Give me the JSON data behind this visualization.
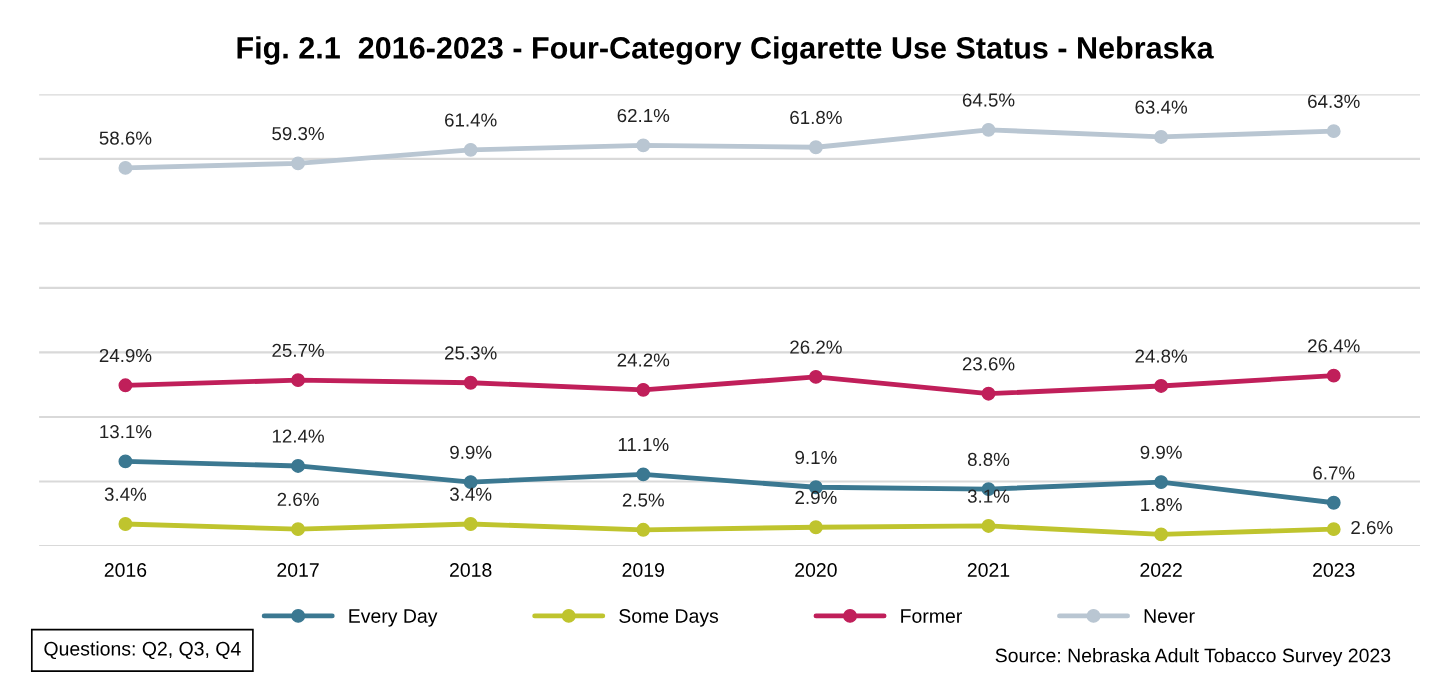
{
  "chart_data": {
    "type": "line",
    "title": "Fig. 2.1  2016-2023 - Four-Category Cigarette Use Status - Nebraska",
    "categories": [
      "2016",
      "2017",
      "2018",
      "2019",
      "2020",
      "2021",
      "2022",
      "2023"
    ],
    "series": [
      {
        "name": "Every Day",
        "color": "#3b7891",
        "values": [
          13.1,
          12.4,
          9.9,
          11.1,
          9.1,
          8.8,
          9.9,
          6.7
        ],
        "value_labels": [
          "13.1%",
          "12.4%",
          "9.9%",
          "11.1%",
          "9.1%",
          "8.8%",
          "9.9%",
          "6.7%"
        ]
      },
      {
        "name": "Some Days",
        "color": "#bfc42e",
        "values": [
          3.4,
          2.6,
          3.4,
          2.5,
          2.9,
          3.1,
          1.8,
          2.6
        ],
        "value_labels": [
          "3.4%",
          "2.6%",
          "3.4%",
          "2.5%",
          "2.9%",
          "3.1%",
          "1.8%",
          "2.6%"
        ]
      },
      {
        "name": "Former",
        "color": "#c01f5a",
        "values": [
          24.9,
          25.7,
          25.3,
          24.2,
          26.2,
          23.6,
          24.8,
          26.4
        ],
        "value_labels": [
          "24.9%",
          "25.7%",
          "25.3%",
          "24.2%",
          "26.2%",
          "23.6%",
          "24.8%",
          "26.4%"
        ]
      },
      {
        "name": "Never",
        "color": "#b9c6d2",
        "values": [
          58.6,
          59.3,
          61.4,
          62.1,
          61.8,
          64.5,
          63.4,
          64.3
        ],
        "value_labels": [
          "58.6%",
          "59.3%",
          "61.4%",
          "62.1%",
          "61.8%",
          "64.5%",
          "63.4%",
          "64.3%"
        ]
      }
    ],
    "ylim": [
      0,
      70
    ],
    "yticks": [
      {
        "value": 0,
        "label": null
      },
      {
        "value": 10,
        "label": null
      },
      {
        "value": 20,
        "label": null
      },
      {
        "value": 30,
        "label": null
      },
      {
        "value": 40,
        "label": null
      },
      {
        "value": 50,
        "label": null
      },
      {
        "value": 60,
        "label": null
      },
      {
        "value": 70,
        "label": null
      }
    ],
    "tick_labels": "x",
    "grid": "y",
    "legend": "bottom",
    "marker": "circle",
    "line_style": "solid",
    "annotations": [
      "Questions: Q2, Q3, Q4",
      "Source: Nebraska Adult Tobacco Survey 2023"
    ]
  }
}
